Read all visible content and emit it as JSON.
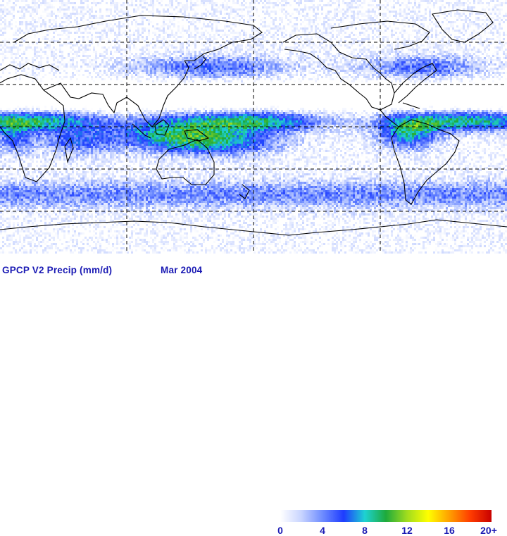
{
  "map": {
    "projection": "equirectangular",
    "lon_range": [
      20,
      380
    ],
    "lat_range": [
      -90,
      90
    ],
    "grid_lines": {
      "longitudes": [
        110,
        200,
        290
      ],
      "latitudes": [
        -60,
        -30,
        0,
        30,
        60
      ]
    }
  },
  "footer": {
    "title": "GPCP V2 Precip (mm/d)",
    "date": "Mar  2004"
  },
  "colorbar": {
    "ticks": [
      "0",
      "4",
      "8",
      "12",
      "16",
      "20+"
    ],
    "min": 0,
    "max": 20,
    "colors": [
      "#ffffff",
      "#c8d4ff",
      "#6e8cff",
      "#1e3cff",
      "#1ed2d2",
      "#1eaa3c",
      "#a0dc1e",
      "#ffff00",
      "#ffa000",
      "#ff3c00",
      "#c80000"
    ]
  },
  "colors": {
    "text": "#1a1ab4",
    "coastline": "#000000"
  }
}
